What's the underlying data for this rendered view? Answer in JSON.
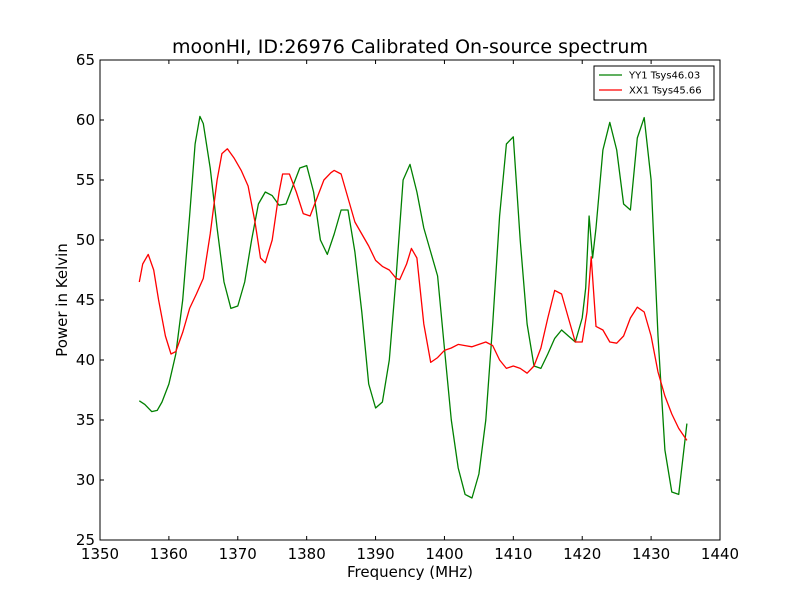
{
  "chart_data": {
    "type": "line",
    "title": "moonHI, ID:26976 Calibrated On-source spectrum",
    "xlabel": "Frequency (MHz)",
    "ylabel": "Power in Kelvin",
    "xlim": [
      1350,
      1440
    ],
    "ylim": [
      25,
      65
    ],
    "xticks": [
      1350,
      1360,
      1370,
      1380,
      1390,
      1400,
      1410,
      1420,
      1430,
      1440
    ],
    "yticks": [
      25,
      30,
      35,
      40,
      45,
      50,
      55,
      60,
      65
    ],
    "grid": false,
    "legend_position": "top-right",
    "series": [
      {
        "name": "YY1 Tsys46.03",
        "color": "#008000",
        "x": [
          1355.7,
          1356.5,
          1357.5,
          1358.3,
          1359.0,
          1360.0,
          1361.0,
          1362.0,
          1363.0,
          1363.8,
          1364.5,
          1365.0,
          1366.0,
          1367.0,
          1368.0,
          1369.0,
          1370.0,
          1371.0,
          1372.0,
          1373.0,
          1374.0,
          1375.0,
          1376.0,
          1377.0,
          1378.0,
          1379.0,
          1380.0,
          1381.0,
          1382.0,
          1383.0,
          1384.0,
          1385.0,
          1386.0,
          1387.0,
          1388.0,
          1389.0,
          1390.0,
          1391.0,
          1392.0,
          1393.0,
          1394.0,
          1395.0,
          1396.0,
          1397.0,
          1398.0,
          1399.0,
          1400.0,
          1401.0,
          1402.0,
          1403.0,
          1404.0,
          1405.0,
          1406.0,
          1407.0,
          1408.0,
          1409.0,
          1410.0,
          1411.0,
          1412.0,
          1413.0,
          1414.0,
          1415.0,
          1416.0,
          1417.0,
          1418.0,
          1419.0,
          1420.0,
          1420.5,
          1421.0,
          1421.5,
          1422.0,
          1423.0,
          1424.0,
          1425.0,
          1426.0,
          1427.0,
          1428.0,
          1429.0,
          1430.0,
          1431.0,
          1432.0,
          1433.0,
          1434.0,
          1435.2
        ],
        "y": [
          36.6,
          36.3,
          35.7,
          35.8,
          36.5,
          38.0,
          40.5,
          45.0,
          52.0,
          58.0,
          60.3,
          59.7,
          56.0,
          51.0,
          46.5,
          44.3,
          44.5,
          46.5,
          50.0,
          53.0,
          54.0,
          53.7,
          52.9,
          53.0,
          54.5,
          56.0,
          56.2,
          54.0,
          50.0,
          48.8,
          50.5,
          52.5,
          52.5,
          49.0,
          44.0,
          38.0,
          36.0,
          36.5,
          40.0,
          47.0,
          55.0,
          56.3,
          54.0,
          51.0,
          49.0,
          47.0,
          41.0,
          35.0,
          31.0,
          28.8,
          28.5,
          30.5,
          35.0,
          43.0,
          52.0,
          58.0,
          58.6,
          50.0,
          43.0,
          39.5,
          39.3,
          40.5,
          41.8,
          42.5,
          42.0,
          41.5,
          43.5,
          46.0,
          52.0,
          48.5,
          51.0,
          57.5,
          59.8,
          57.5,
          53.0,
          52.5,
          58.5,
          60.2,
          55.0,
          42.0,
          32.5,
          29.0,
          28.8,
          34.7
        ]
      },
      {
        "name": "XX1 Tsys45.66",
        "color": "#ff0000",
        "x": [
          1355.7,
          1356.2,
          1357.0,
          1357.8,
          1358.5,
          1359.5,
          1360.3,
          1361.0,
          1362.0,
          1363.0,
          1364.0,
          1365.0,
          1366.0,
          1367.0,
          1367.7,
          1368.5,
          1369.5,
          1370.5,
          1371.5,
          1372.5,
          1373.3,
          1374.0,
          1375.0,
          1376.0,
          1376.5,
          1377.5,
          1378.5,
          1379.5,
          1380.5,
          1381.5,
          1382.5,
          1383.5,
          1384.0,
          1385.0,
          1386.0,
          1387.0,
          1388.0,
          1389.0,
          1390.0,
          1391.0,
          1392.0,
          1393.0,
          1393.5,
          1394.5,
          1395.2,
          1396.0,
          1397.0,
          1398.0,
          1399.0,
          1400.0,
          1401.0,
          1402.0,
          1403.0,
          1404.0,
          1405.0,
          1406.0,
          1407.0,
          1408.0,
          1409.0,
          1410.0,
          1411.0,
          1412.0,
          1413.0,
          1414.0,
          1415.0,
          1416.0,
          1417.0,
          1418.0,
          1419.0,
          1420.0,
          1420.7,
          1421.3,
          1422.0,
          1423.0,
          1424.0,
          1425.0,
          1426.0,
          1427.0,
          1428.0,
          1429.0,
          1430.0,
          1431.0,
          1432.0,
          1433.0,
          1434.0,
          1435.2
        ],
        "y": [
          46.5,
          48.0,
          48.8,
          47.5,
          45.0,
          42.0,
          40.5,
          40.7,
          42.3,
          44.3,
          45.5,
          46.8,
          50.5,
          55.0,
          57.2,
          57.6,
          56.8,
          55.8,
          54.5,
          51.5,
          48.5,
          48.1,
          50.0,
          54.0,
          55.5,
          55.5,
          54.0,
          52.2,
          52.0,
          53.5,
          55.0,
          55.6,
          55.8,
          55.5,
          53.5,
          51.5,
          50.5,
          49.5,
          48.3,
          47.8,
          47.5,
          46.8,
          46.7,
          48.0,
          49.3,
          48.5,
          43.0,
          39.8,
          40.2,
          40.8,
          41.0,
          41.3,
          41.2,
          41.1,
          41.3,
          41.5,
          41.2,
          40.0,
          39.3,
          39.5,
          39.3,
          38.9,
          39.5,
          41.0,
          43.5,
          45.8,
          45.5,
          43.5,
          41.5,
          41.5,
          44.0,
          48.6,
          42.8,
          42.5,
          41.5,
          41.4,
          42.0,
          43.5,
          44.4,
          44.0,
          42.0,
          39.0,
          37.0,
          35.5,
          34.3,
          33.3
        ]
      }
    ]
  }
}
